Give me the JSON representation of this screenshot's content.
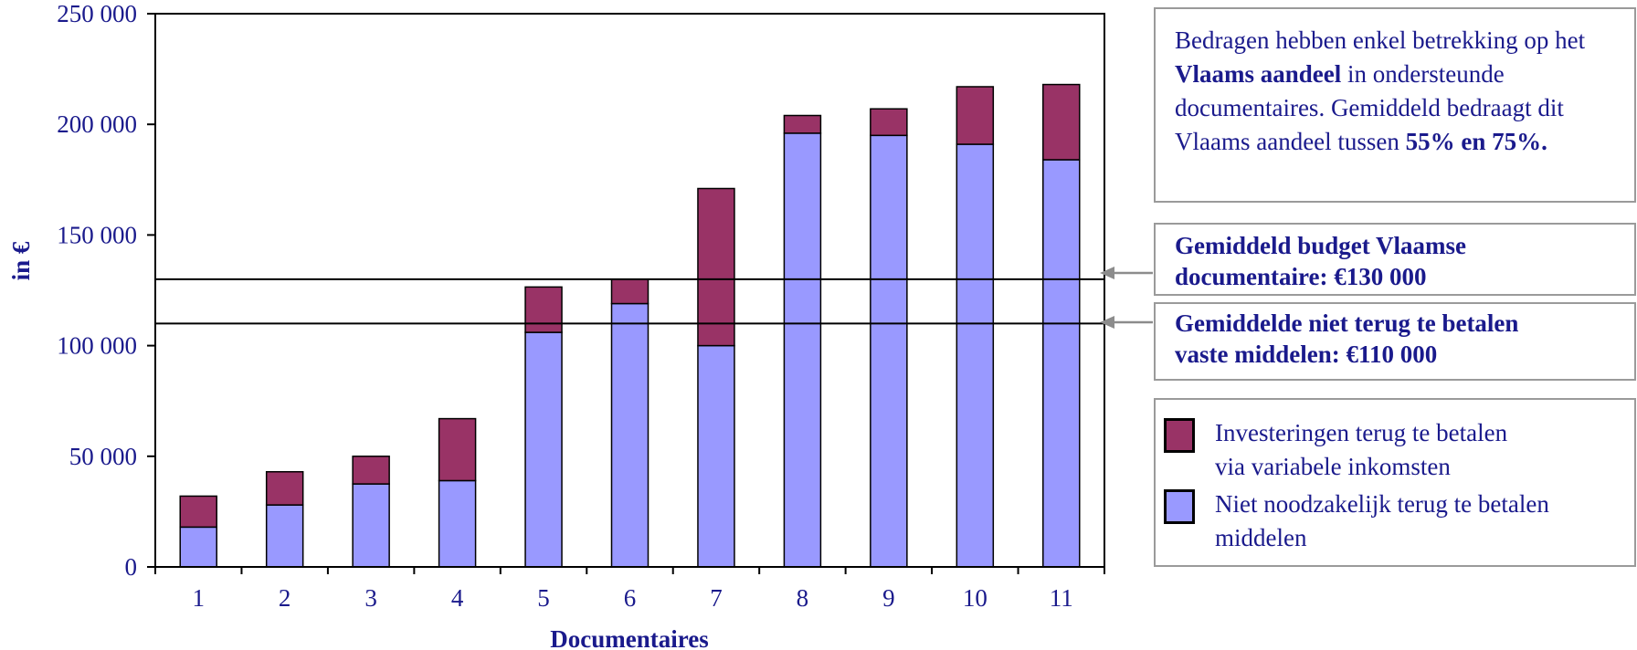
{
  "chart_data": {
    "type": "bar",
    "stacked": true,
    "categories": [
      "1",
      "2",
      "3",
      "4",
      "5",
      "6",
      "7",
      "8",
      "9",
      "10",
      "11"
    ],
    "series": [
      {
        "name": "Niet noodzakelijk terug te betalen middelen",
        "color": "#9999ff",
        "values": [
          18000,
          28000,
          37500,
          39000,
          106000,
          119000,
          100000,
          196000,
          195000,
          191000,
          184000
        ]
      },
      {
        "name": "Investeringen terug te betalen via variabele inkomsten",
        "color": "#993366",
        "values": [
          14000,
          15000,
          12500,
          28000,
          20500,
          11000,
          71000,
          8000,
          12000,
          26000,
          34000
        ]
      }
    ],
    "xlabel": "Documentaires",
    "ylabel": "in €",
    "ylim": [
      0,
      250000
    ],
    "yticks": [
      "0",
      "50 000",
      "100 000",
      "150 000",
      "200 000",
      "250 000"
    ],
    "reference_lines": [
      {
        "value": 130000,
        "label_line1": "Gemiddeld budget Vlaamse",
        "label_line2": "documentaire: €130 000"
      },
      {
        "value": 110000,
        "label_line1": "Gemiddelde niet terug te betalen",
        "label_line2": "vaste middelen: €110 000"
      }
    ],
    "grid": false,
    "legend_position": "right"
  },
  "note": {
    "part1": "Bedragen hebben enkel betrekking op het ",
    "bold1": "Vlaams aandeel",
    "part2": " in ondersteunde documentaires. Gemiddeld bedraagt dit Vlaams aandeel tussen ",
    "bold2": "55% en 75%."
  },
  "legend": {
    "item1_line1": "Investeringen terug te betalen",
    "item1_line2": "via variabele inkomsten",
    "item2_line1": "Niet noodzakelijk terug te betalen",
    "item2_line2": "middelen"
  },
  "colors": {
    "text": "#1a1a8c",
    "bar_lower": "#9999ff",
    "bar_upper": "#993366",
    "arrow": "#8c8c8c"
  }
}
